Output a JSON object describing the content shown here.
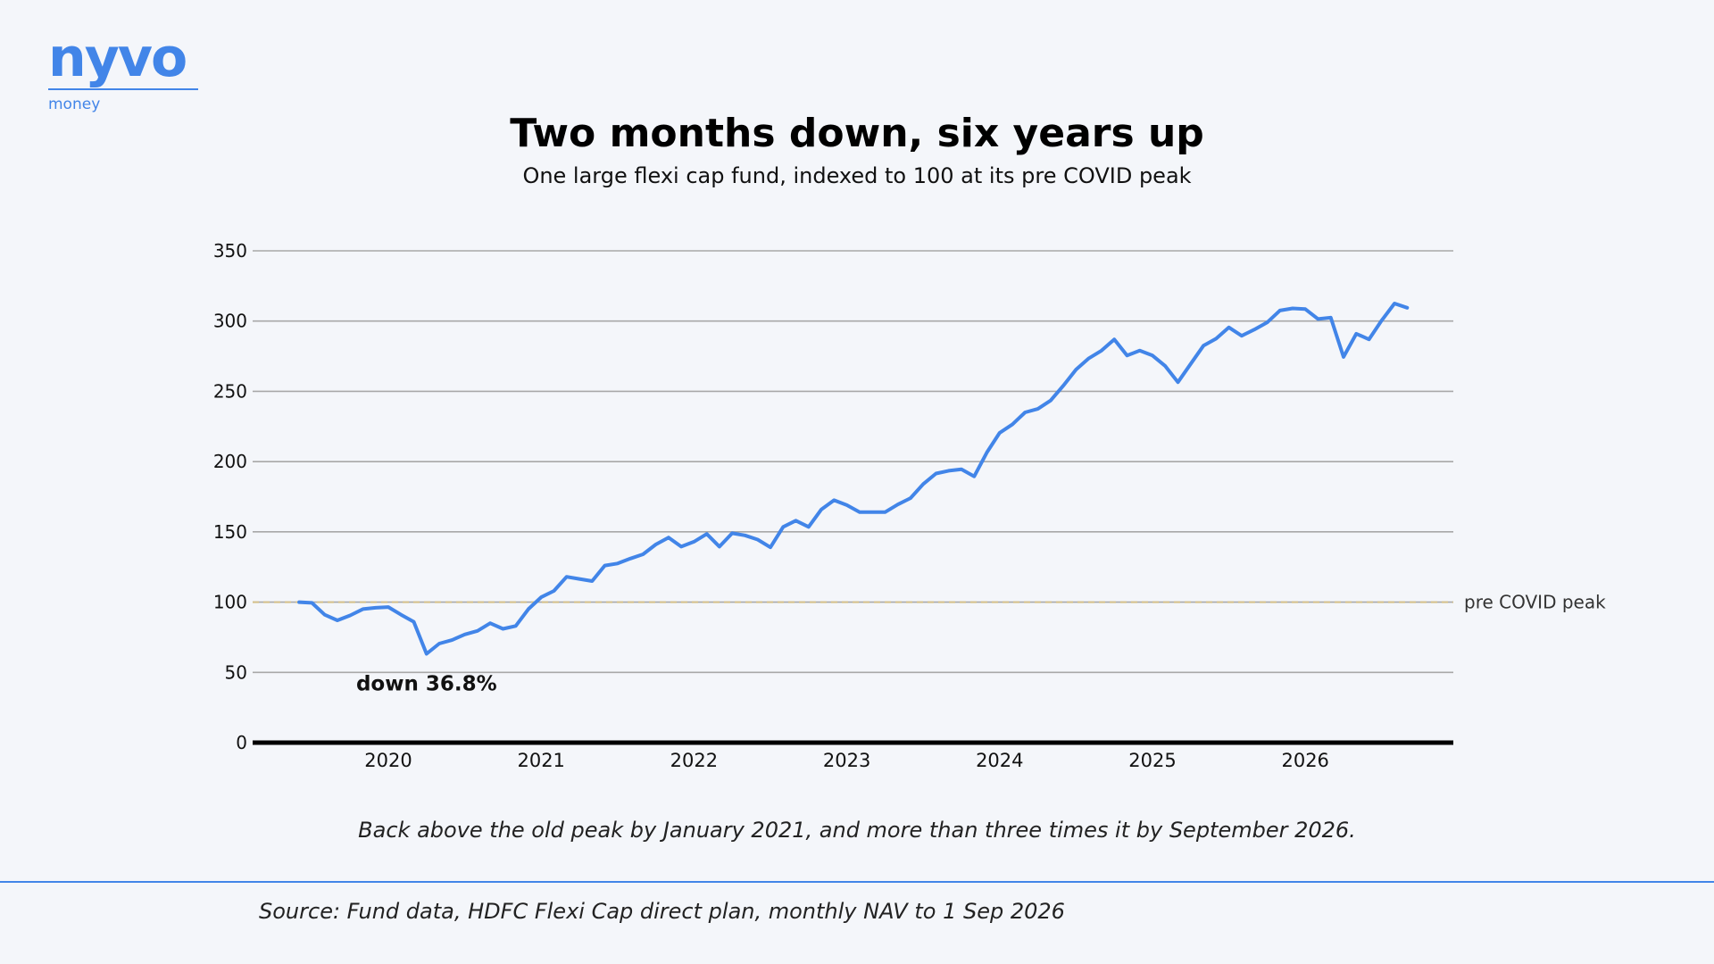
{
  "logo": {
    "word": "nyvo",
    "sub": "money"
  },
  "colors": {
    "line": "#4285e8",
    "reference": "#d4c08a",
    "grid": "#a8a8a8",
    "axis": "#000000"
  },
  "chart_data": {
    "type": "line",
    "title": "Two months down, six years up",
    "subtitle": "One large flexi cap fund, indexed to 100 at its pre COVID peak",
    "xlabel": "",
    "ylabel": "",
    "ylim": [
      0,
      350
    ],
    "yticks": [
      0,
      50,
      100,
      150,
      200,
      250,
      300,
      350
    ],
    "xticks": [
      "2020",
      "2021",
      "2022",
      "2023",
      "2024",
      "2025",
      "2026"
    ],
    "grid": true,
    "reference_line": {
      "value": 100,
      "label": "pre COVID peak"
    },
    "annotation": {
      "text": "down 36.8%",
      "x": "2020-04",
      "y": 63.2
    },
    "series": [
      {
        "x": [
          "2019-06",
          "2019-07",
          "2019-08",
          "2019-09",
          "2019-10",
          "2019-11",
          "2019-12",
          "2020-01",
          "2020-02",
          "2020-03",
          "2020-04",
          "2020-05",
          "2020-06",
          "2020-07",
          "2020-08",
          "2020-09",
          "2020-10",
          "2020-11",
          "2020-12",
          "2021-01",
          "2021-02",
          "2021-03",
          "2021-04",
          "2021-05",
          "2021-06",
          "2021-07",
          "2021-08",
          "2021-09",
          "2021-10",
          "2021-11",
          "2021-12",
          "2022-01",
          "2022-02",
          "2022-03",
          "2022-04",
          "2022-05",
          "2022-06",
          "2022-07",
          "2022-08",
          "2022-09",
          "2022-10",
          "2022-11",
          "2022-12",
          "2023-01",
          "2023-02",
          "2023-03",
          "2023-04",
          "2023-05",
          "2023-06",
          "2023-07",
          "2023-08",
          "2023-09",
          "2023-10",
          "2023-11",
          "2023-12",
          "2024-01",
          "2024-02",
          "2024-03",
          "2024-04",
          "2024-05",
          "2024-06",
          "2024-07",
          "2024-08",
          "2024-09",
          "2024-10",
          "2024-11",
          "2024-12",
          "2025-01",
          "2025-02",
          "2025-03",
          "2025-04",
          "2025-05",
          "2025-06",
          "2025-07",
          "2025-08",
          "2025-09",
          "2025-10",
          "2025-11",
          "2025-12",
          "2026-01",
          "2026-02",
          "2026-03",
          "2026-04",
          "2026-05",
          "2026-06",
          "2026-07",
          "2026-08",
          "2026-09"
        ],
        "values": [
          100,
          99.5,
          91,
          87,
          90.5,
          95,
          96,
          96.5,
          91,
          86,
          63.2,
          70.5,
          73,
          77,
          79.5,
          85,
          81,
          83,
          95,
          103.5,
          108,
          118,
          116.5,
          115,
          126,
          127.5,
          131,
          134,
          141,
          146,
          139.5,
          143,
          148.5,
          139.5,
          149,
          147.5,
          144.5,
          139,
          153.5,
          158,
          153.5,
          166,
          172.5,
          169,
          164,
          164,
          164,
          169.5,
          174,
          184,
          191.5,
          193.5,
          194.5,
          189.5,
          206.5,
          220.5,
          226.5,
          235,
          237.5,
          243.5,
          254,
          265.5,
          273.5,
          279,
          287,
          275.5,
          279,
          275.5,
          268,
          256.5,
          269.5,
          282.5,
          287.5,
          295.5,
          289.5,
          294,
          299,
          307.5,
          309,
          308.5,
          301.5,
          302.5,
          274.5,
          291,
          287,
          300.5,
          312.5,
          309.5
        ]
      }
    ]
  },
  "caption": "Back above the old peak by January 2021, and more than three times it by September 2026.",
  "source": "Source: Fund data, HDFC Flexi Cap direct plan, monthly NAV to 1 Sep 2026"
}
